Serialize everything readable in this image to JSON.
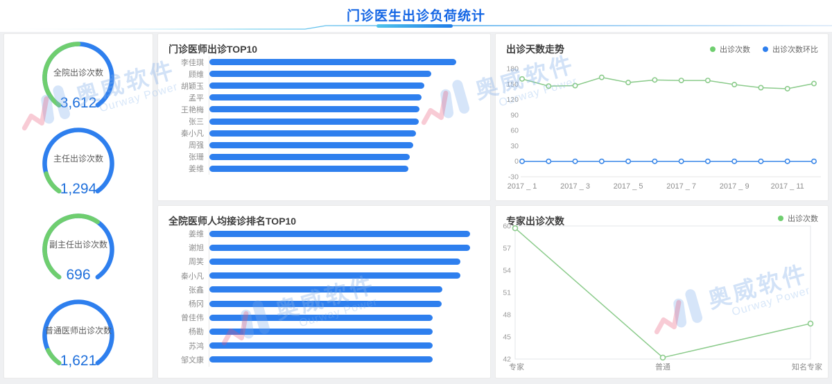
{
  "header": {
    "title": "门诊医生出诊负荷统计"
  },
  "watermark": {
    "cn": "奥威软件",
    "en": "Ourway Power"
  },
  "colors": {
    "title_blue": "#1365E4",
    "bar_blue": "#2E7FEE",
    "gauge_blue": "#2E7FEE",
    "gauge_green": "#6FCE6F",
    "line_green": "#8BCB8B",
    "line_blue": "#3A87E8",
    "value_blue": "#1E6FDB"
  },
  "chart_data": [
    {
      "type": "gauge",
      "title": "全院出诊次数",
      "value": 3612,
      "value_display": "3,612",
      "green_fraction": 0.5
    },
    {
      "type": "gauge",
      "title": "主任出诊次数",
      "value": 1294,
      "value_display": "1,294",
      "green_fraction": 0.13
    },
    {
      "type": "gauge",
      "title": "副主任出诊次数",
      "value": 696,
      "value_display": "696",
      "green_fraction": 0.62
    },
    {
      "type": "gauge",
      "title": "普通医师出诊次数",
      "value": 1621,
      "value_display": "1,621",
      "green_fraction": 0.1
    },
    {
      "type": "bar",
      "orientation": "horizontal",
      "title": "门诊医师出诊TOP10",
      "categories": [
        "李佳琪",
        "顾维",
        "胡颖玉",
        "孟平",
        "王艳梅",
        "张三",
        "秦小凡",
        "周强",
        "张珊",
        "姜维"
      ],
      "values_pct_of_max": [
        100,
        90,
        87,
        86,
        85,
        84.8,
        83.7,
        82.6,
        81.2,
        80.6
      ]
    },
    {
      "type": "bar",
      "orientation": "horizontal",
      "title": "全院医师人均接诊排名TOP10",
      "categories": [
        "姜维",
        "谢旭",
        "周笑",
        "秦小凡",
        "张鑫",
        "杨冈",
        "曾佳伟",
        "杨勘",
        "苏鸿",
        "邹文康"
      ],
      "values_pct_of_max": [
        100,
        100,
        96.3,
        96.3,
        89.4,
        89.1,
        85.6,
        85.6,
        85.6,
        85.6
      ]
    },
    {
      "type": "line",
      "title": "出诊天数走势",
      "x": [
        "2017 _ 1",
        "2017 _ 2",
        "2017 _ 3",
        "2017 _ 4",
        "2017 _ 5",
        "2017 _ 6",
        "2017 _ 7",
        "2017 _ 8",
        "2017 _ 9",
        "2017 _ 10",
        "2017 _ 11",
        "2017 _ 12"
      ],
      "x_tick_labels": [
        "2017 _ 1",
        "2017 _ 3",
        "2017 _ 5",
        "2017 _ 7",
        "2017 _ 9",
        "2017 _ 11"
      ],
      "x_tick_indices": [
        0,
        2,
        4,
        6,
        8,
        10
      ],
      "ylim": [
        -30,
        180
      ],
      "yticks": [
        180,
        150,
        120,
        90,
        60,
        30,
        0,
        -30
      ],
      "legend_position": "top-right",
      "series": [
        {
          "name": "出诊次数",
          "color": "green",
          "values": [
            160,
            146,
            147,
            163,
            153,
            158,
            157,
            157,
            149,
            143,
            141,
            151
          ]
        },
        {
          "name": "出诊次数环比",
          "color": "blue",
          "values": [
            0,
            0,
            0,
            0,
            0,
            0,
            0,
            0,
            0,
            0,
            0,
            0
          ]
        }
      ]
    },
    {
      "type": "line",
      "title": "专家出诊次数",
      "categories": [
        "专家",
        "普通",
        "知名专家"
      ],
      "ylim": [
        42,
        60
      ],
      "yticks": [
        60,
        57,
        54,
        51,
        48,
        45,
        42
      ],
      "legend_position": "top-right",
      "plot_border": true,
      "series": [
        {
          "name": "出诊次数",
          "color": "green",
          "values": [
            59.7,
            42.2,
            46.8
          ]
        }
      ]
    }
  ]
}
